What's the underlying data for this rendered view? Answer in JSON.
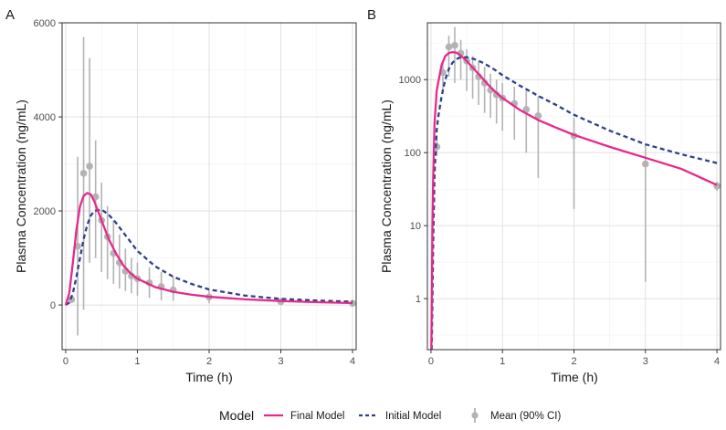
{
  "colors": {
    "final": "#e7298a",
    "initial": "#2e3f8f",
    "observed": "#b3b3b3",
    "grid_major": "#e0e0e0",
    "grid_minor": "#f0f0f0",
    "panel_border": "#333333"
  },
  "legend": {
    "title": "Model",
    "items": [
      {
        "label": "Final Model",
        "kind": "solid"
      },
      {
        "label": "Initial Model",
        "kind": "dashed"
      },
      {
        "label": "Mean (90% CI)",
        "kind": "point"
      }
    ]
  },
  "chart_data": [
    {
      "panel": "A",
      "type": "line",
      "scale": "linear",
      "title": "",
      "xlabel": "Time (h)",
      "ylabel": "Plasma Concentration (ng/mL)",
      "xlim": [
        -0.05,
        4.05
      ],
      "ylim": [
        -950,
        6000
      ],
      "xticks": [
        0,
        1,
        2,
        3,
        4
      ],
      "xtick_labels": [
        "0",
        "1",
        "2",
        "3",
        "4"
      ],
      "yticks": [
        0,
        2000,
        4000,
        6000
      ],
      "ytick_labels": [
        "0",
        "2000",
        "4000",
        "6000"
      ],
      "final_model": {
        "x": [
          0,
          0.05,
          0.1,
          0.15,
          0.2,
          0.25,
          0.3,
          0.35,
          0.4,
          0.45,
          0.5,
          0.6,
          0.7,
          0.8,
          0.9,
          1.0,
          1.25,
          1.5,
          1.75,
          2.0,
          2.5,
          3.0,
          3.5,
          4.0
        ],
        "y": [
          0,
          250,
          900,
          1600,
          2100,
          2320,
          2380,
          2350,
          2200,
          2000,
          1800,
          1400,
          1100,
          850,
          680,
          560,
          380,
          280,
          220,
          175,
          120,
          85,
          60,
          40
        ]
      },
      "initial_model": {
        "x": [
          0,
          0.05,
          0.1,
          0.15,
          0.2,
          0.25,
          0.3,
          0.35,
          0.4,
          0.5,
          0.6,
          0.7,
          0.8,
          0.9,
          1.0,
          1.25,
          1.5,
          1.75,
          2.0,
          2.5,
          3.0,
          3.5,
          4.0
        ],
        "y": [
          0,
          50,
          250,
          600,
          1000,
          1400,
          1700,
          1900,
          2000,
          2030,
          1920,
          1750,
          1550,
          1350,
          1150,
          820,
          600,
          450,
          330,
          200,
          130,
          95,
          70
        ]
      },
      "observed": {
        "x": [
          0.083,
          0.167,
          0.25,
          0.333,
          0.417,
          0.5,
          0.583,
          0.667,
          0.75,
          0.833,
          0.917,
          1.0,
          1.167,
          1.333,
          1.5,
          2.0,
          3.0,
          4.0
        ],
        "mean": [
          120,
          1250,
          2800,
          2950,
          2300,
          1800,
          1450,
          1100,
          900,
          720,
          620,
          560,
          470,
          390,
          320,
          170,
          70,
          35
        ],
        "lower": [
          40,
          -650,
          -100,
          900,
          1000,
          700,
          550,
          450,
          350,
          300,
          250,
          200,
          150,
          100,
          90,
          40,
          5,
          5
        ],
        "upper": [
          200,
          3150,
          5700,
          5250,
          3500,
          2600,
          2100,
          1800,
          1500,
          1200,
          1000,
          900,
          800,
          700,
          600,
          300,
          130,
          80
        ]
      }
    },
    {
      "panel": "B",
      "type": "line",
      "scale": "log10",
      "title": "",
      "xlabel": "Time (h)",
      "ylabel": "Plasma Concentration (ng/mL)",
      "xlim": [
        -0.05,
        4.05
      ],
      "ylim": [
        0.2,
        6000
      ],
      "xticks": [
        0,
        1,
        2,
        3,
        4
      ],
      "xtick_labels": [
        "0",
        "1",
        "2",
        "3",
        "4"
      ],
      "yticks": [
        1,
        10,
        100,
        1000
      ],
      "ytick_labels": [
        "1",
        "10",
        "100",
        "1000"
      ],
      "final_model": {
        "x": [
          0.005,
          0.01,
          0.02,
          0.03,
          0.05,
          0.08,
          0.1,
          0.15,
          0.2,
          0.25,
          0.3,
          0.35,
          0.4,
          0.45,
          0.5,
          0.6,
          0.7,
          0.8,
          0.9,
          1.0,
          1.25,
          1.5,
          1.75,
          2.0,
          2.5,
          3.0,
          3.5,
          4.0
        ],
        "y": [
          0.2,
          0.6,
          8,
          40,
          250,
          700,
          900,
          1600,
          2100,
          2320,
          2380,
          2350,
          2200,
          2000,
          1800,
          1400,
          1100,
          850,
          680,
          560,
          380,
          280,
          220,
          175,
          120,
          85,
          60,
          36
        ]
      },
      "initial_model": {
        "x": [
          0.01,
          0.02,
          0.03,
          0.05,
          0.08,
          0.1,
          0.15,
          0.2,
          0.25,
          0.3,
          0.35,
          0.4,
          0.5,
          0.6,
          0.7,
          0.8,
          0.9,
          1.0,
          1.25,
          1.5,
          1.75,
          2.0,
          2.5,
          3.0,
          3.5,
          4.0
        ],
        "y": [
          0.2,
          0.8,
          5,
          50,
          200,
          300,
          600,
          1000,
          1400,
          1700,
          1900,
          2000,
          2030,
          1920,
          1750,
          1550,
          1350,
          1150,
          820,
          600,
          450,
          330,
          200,
          130,
          95,
          72
        ]
      },
      "observed": {
        "x": [
          0.083,
          0.167,
          0.25,
          0.333,
          0.417,
          0.5,
          0.583,
          0.667,
          0.75,
          0.833,
          0.917,
          1.0,
          1.167,
          1.333,
          1.5,
          2.0,
          3.0,
          4.0
        ],
        "mean": [
          120,
          1250,
          2800,
          2950,
          2300,
          1800,
          1450,
          1100,
          900,
          720,
          620,
          560,
          470,
          390,
          320,
          170,
          70,
          35
        ],
        "lower": [
          90,
          700,
          1100,
          900,
          1000,
          700,
          550,
          450,
          350,
          300,
          250,
          200,
          150,
          100,
          45,
          17,
          1.7,
          30
        ],
        "upper": [
          150,
          1800,
          4000,
          5250,
          3500,
          2600,
          2100,
          1800,
          1500,
          1200,
          1000,
          900,
          800,
          700,
          600,
          300,
          130,
          40
        ]
      }
    }
  ]
}
